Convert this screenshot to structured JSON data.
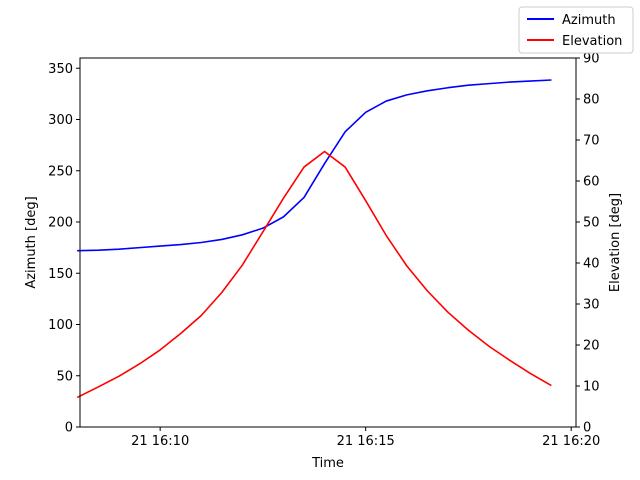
{
  "chart_data": {
    "type": "line",
    "xlabel": "Time",
    "ylabel_left": "Azimuth [deg]",
    "ylabel_right": "Elevation [deg]",
    "x_ticks": [
      {
        "value": "2024-01-21 16:10",
        "label": "21 16:10"
      },
      {
        "value": "2024-01-21 16:15",
        "label": "21 16:15"
      },
      {
        "value": "2024-01-21 16:20",
        "label": "21 16:20"
      }
    ],
    "xlim": [
      "2024-01-21 16:08:03",
      "2024-01-21 16:20:07"
    ],
    "ylim_left": [
      0,
      360
    ],
    "ylim_right": [
      0,
      90
    ],
    "y_ticks_left": [
      0,
      50,
      100,
      150,
      200,
      250,
      300,
      350
    ],
    "y_ticks_right": [
      0,
      10,
      20,
      30,
      40,
      50,
      60,
      70,
      80,
      90
    ],
    "grid": false,
    "legend_placement": "top-right",
    "x": [
      "2024-01-21 16:08:00",
      "2024-01-21 16:08:30",
      "2024-01-21 16:09:00",
      "2024-01-21 16:09:30",
      "2024-01-21 16:10:00",
      "2024-01-21 16:10:30",
      "2024-01-21 16:11:00",
      "2024-01-21 16:11:30",
      "2024-01-21 16:12:00",
      "2024-01-21 16:12:30",
      "2024-01-21 16:13:00",
      "2024-01-21 16:13:30",
      "2024-01-21 16:14:00",
      "2024-01-21 16:14:30",
      "2024-01-21 16:15:00",
      "2024-01-21 16:15:30",
      "2024-01-21 16:16:00",
      "2024-01-21 16:16:30",
      "2024-01-21 16:17:00",
      "2024-01-21 16:17:30",
      "2024-01-21 16:18:00",
      "2024-01-21 16:18:30",
      "2024-01-21 16:19:00",
      "2024-01-21 16:19:30"
    ],
    "series": [
      {
        "name": "Azimuth",
        "axis": "left",
        "color": "#0000ff",
        "values": [
          172,
          172.5,
          173.5,
          175,
          176.5,
          178,
          180,
          183,
          187.5,
          194,
          205,
          224,
          257,
          288,
          307,
          318,
          324,
          328,
          331,
          333.5,
          335,
          336.5,
          337.5,
          338.5
        ]
      },
      {
        "name": "Elevation",
        "axis": "right",
        "color": "#ff0000",
        "values": [
          7.3,
          9.8,
          12.4,
          15.4,
          18.8,
          22.8,
          27.2,
          32.8,
          39.5,
          47.6,
          55.8,
          63.4,
          67.2,
          63.4,
          55.2,
          46.7,
          39.3,
          33.2,
          28.0,
          23.6,
          19.7,
          16.3,
          13.1,
          10.2
        ]
      }
    ]
  }
}
